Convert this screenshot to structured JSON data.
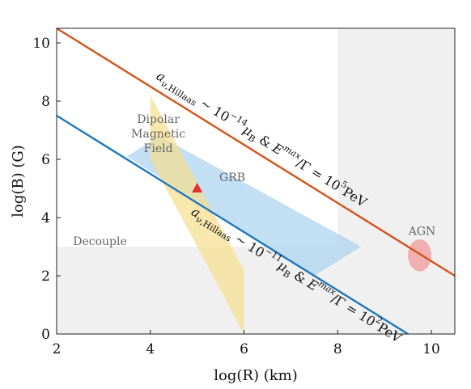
{
  "chart_data": {
    "type": "line",
    "xlabel": "log(R) (km)",
    "ylabel": "log(B) (G)",
    "xlim": [
      2,
      10.5
    ],
    "ylim": [
      0,
      10.5
    ],
    "xticks": [
      2,
      4,
      6,
      8,
      10
    ],
    "yticks": [
      0,
      2,
      4,
      6,
      8,
      10
    ],
    "grid": false,
    "series": [
      {
        "name": "α_ν,Hillaas ~ 10^-14 μ_B & E_p^max/Γ = 10^5 PeV",
        "color": "#d4541c",
        "x": [
          2,
          10.5
        ],
        "y": [
          10.5,
          2.0
        ]
      },
      {
        "name": "α_ν,Hillaas ~ 10^-11 μ_B & E_p^max/Γ = 10^2 PeV",
        "color": "#1f77c0",
        "x": [
          2,
          9.5
        ],
        "y": [
          7.5,
          0.0
        ]
      }
    ],
    "regions": [
      {
        "name": "Decouple",
        "color": "#ebebeb",
        "polygon": [
          [
            2,
            0
          ],
          [
            2,
            3
          ],
          [
            8,
            3
          ],
          [
            8,
            10.5
          ],
          [
            10.5,
            10.5
          ],
          [
            10.5,
            0
          ]
        ]
      },
      {
        "name": "GRB",
        "color": "#a9d2f0",
        "polygon": [
          [
            3.5,
            6.1
          ],
          [
            4.2,
            6.8
          ],
          [
            8.5,
            3.0
          ],
          [
            7.5,
            2.0
          ]
        ]
      },
      {
        "name": "Dipolar Magnetic Field",
        "color": "#f5de8c",
        "polygon": [
          [
            4.0,
            8.2
          ],
          [
            6.0,
            2.2
          ],
          [
            6.0,
            0.0
          ],
          [
            4.0,
            6.0
          ]
        ]
      },
      {
        "name": "AGN",
        "color": "#f0a0a0",
        "ellipse": {
          "cx": 9.75,
          "cy": 2.7,
          "rx": 0.25,
          "ry": 0.55
        }
      }
    ],
    "markers": [
      {
        "x": 5.0,
        "y": 5.0,
        "shape": "triangle",
        "color": "#e03030"
      }
    ],
    "annotations": {
      "dipolar": [
        "Dipolar",
        "Magnetic",
        "Field"
      ],
      "grb": "GRB",
      "decouple": "Decouple",
      "agn": "AGN"
    }
  }
}
